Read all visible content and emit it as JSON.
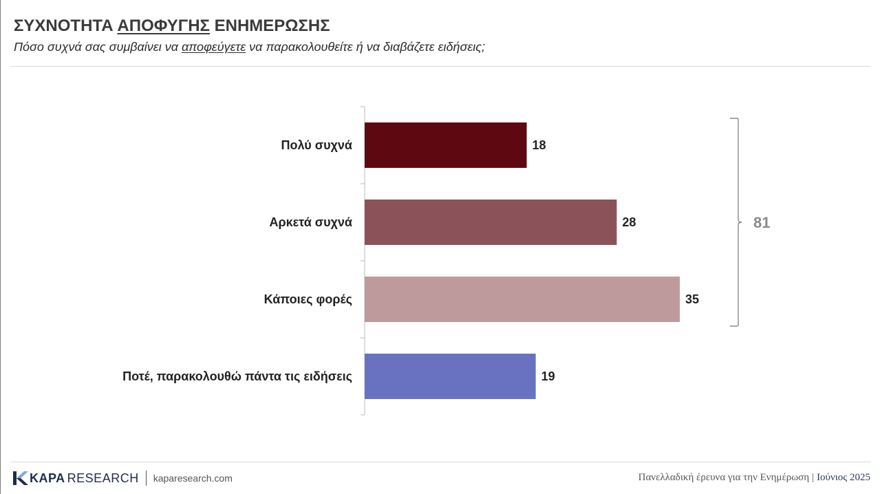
{
  "header": {
    "title_before": "ΣΥΧΝΟΤΗΤΑ ",
    "title_underlined": "ΑΠΟΦΥΓΗΣ",
    "title_after": " ΕΝΗΜΕΡΩΣΗΣ",
    "subtitle_before": "Πόσο συχνά σας συμβαίνει να ",
    "subtitle_underlined": "αποφεύγετε",
    "subtitle_after": " να παρακολουθείτε ή να διαβάζετε ειδήσεις;"
  },
  "chart_data": {
    "type": "bar",
    "orientation": "horizontal",
    "categories": [
      "Πολύ συχνά",
      "Αρκετά συχνά",
      "Κάποιες φορές",
      "Ποτέ, παρακολουθώ πάντα τις ειδήσεις"
    ],
    "values": [
      18,
      28,
      35,
      19
    ],
    "colors": [
      "#5e0812",
      "#8c525a",
      "#be9a9d",
      "#6872c0"
    ],
    "bracket": {
      "label": "81",
      "spans": [
        "Πολύ συχνά",
        "Αρκετά συχνά",
        "Κάποιες φορές"
      ]
    },
    "grid": false,
    "legend": "none"
  },
  "footer": {
    "logo_bold": "KAPA",
    "logo_light": "RESEARCH",
    "url": "kaparesearch.com",
    "survey": "Πανελλαδική έρευνα για την Ενημέρωση",
    "separator": "|",
    "date": "Ιούνιος 2025"
  },
  "colors": {
    "title": "#3a3a3a",
    "axis": "#bbbbbb",
    "bracket": "#8a8a8a",
    "brand": "#1f2d4a"
  }
}
